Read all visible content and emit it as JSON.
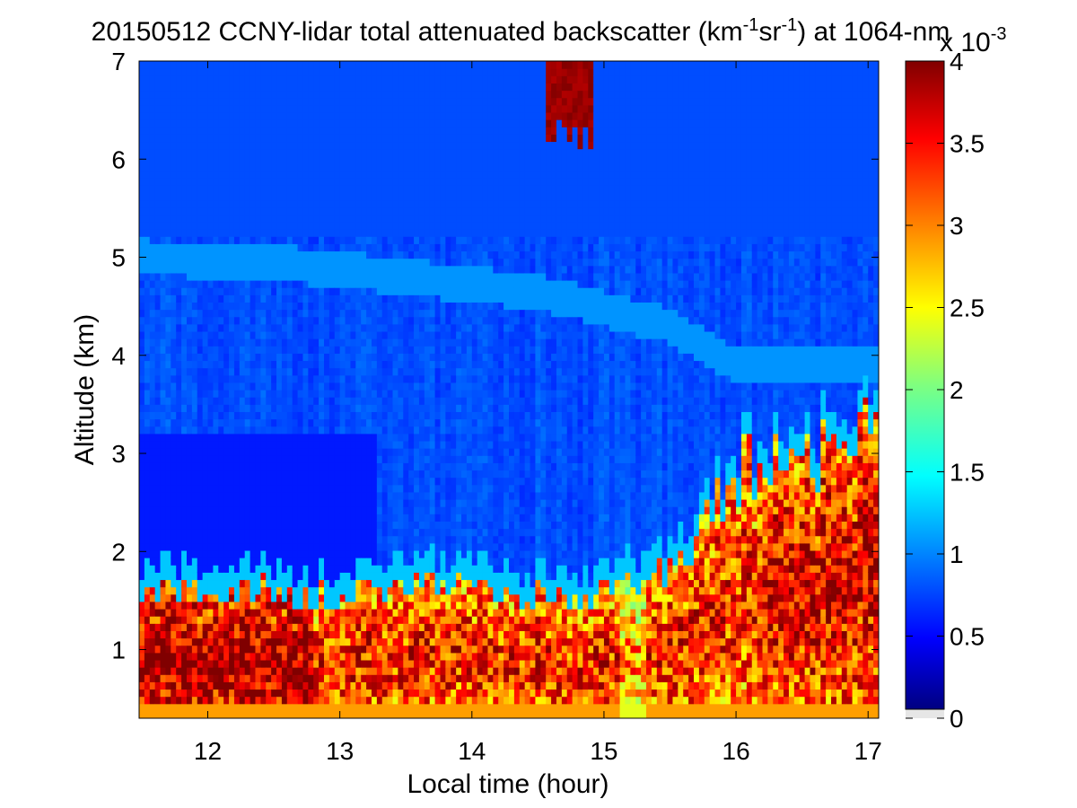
{
  "chart_data": {
    "type": "heatmap",
    "title_parts": {
      "prefix": "20150512 CCNY-lidar total attenuated backscatter (km",
      "sup1": "-1",
      "mid": "sr",
      "sup2": "-1",
      "suffix": ") at 1064-nm"
    },
    "xlabel": "Local time (hour)",
    "ylabel": "Altitude (km)",
    "xlim": [
      11.48,
      17.08
    ],
    "ylim": [
      0.3,
      7
    ],
    "xticks": [
      12,
      13,
      14,
      15,
      16,
      17
    ],
    "yticks": [
      1,
      2,
      3,
      4,
      5,
      6,
      7
    ],
    "colorbar": {
      "min": 0,
      "max": 4,
      "ticks": [
        "0",
        "0.5",
        "1",
        "1.5",
        "2",
        "2.5",
        "3",
        "3.5",
        "4"
      ],
      "tick_values": [
        0,
        0.5,
        1,
        1.5,
        2,
        2.5,
        3,
        3.5,
        4
      ],
      "multiplier_base": "x 10",
      "multiplier_exp": "-3",
      "colormap": "jet",
      "below_min_color": "#e6e6e6"
    },
    "features": {
      "boundary_layer_top_km": [
        [
          11.5,
          1.55
        ],
        [
          12.0,
          1.6
        ],
        [
          12.5,
          1.6
        ],
        [
          13.0,
          1.5
        ],
        [
          13.5,
          1.7
        ],
        [
          14.0,
          1.65
        ],
        [
          14.5,
          1.55
        ],
        [
          15.0,
          1.55
        ],
        [
          15.5,
          1.8
        ],
        [
          16.0,
          2.8
        ],
        [
          16.5,
          2.9
        ],
        [
          17.0,
          3.4
        ]
      ],
      "aerosol_layer_km": [
        [
          11.5,
          5.0
        ],
        [
          12.5,
          4.95
        ],
        [
          13.5,
          4.8
        ],
        [
          14.5,
          4.65
        ],
        [
          15.5,
          4.3
        ],
        [
          16.0,
          3.9
        ]
      ],
      "cirrus_cloud": {
        "time_start": 14.58,
        "time_end": 14.9,
        "base_km": 6.1,
        "top_km": 7.0
      }
    }
  }
}
